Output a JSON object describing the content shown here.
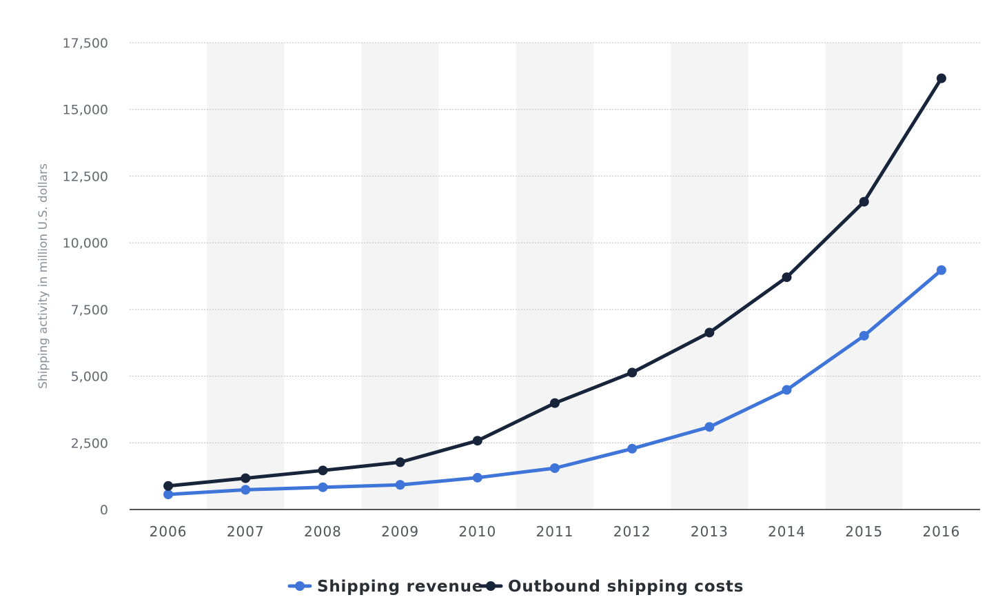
{
  "chart_data": {
    "type": "line",
    "title": "",
    "xlabel": "",
    "ylabel": "Shipping activity in million U.S. dollars",
    "x": [
      "2006",
      "2007",
      "2008",
      "2009",
      "2010",
      "2011",
      "2012",
      "2013",
      "2014",
      "2015",
      "2016"
    ],
    "ylim": [
      0,
      17500
    ],
    "yticks": [
      0,
      2500,
      5000,
      7500,
      10000,
      12500,
      15000,
      17500
    ],
    "ytick_labels": [
      "0",
      "2,500",
      "5,000",
      "7,500",
      "10,000",
      "12,500",
      "15,000",
      "17,500"
    ],
    "grid": true,
    "legend_position": "bottom-center",
    "series": [
      {
        "name": "Shipping revenue",
        "color": "#3f74d8",
        "values": [
          567,
          740,
          835,
          924,
          1193,
          1552,
          2280,
          3097,
          4486,
          6515,
          8976
        ]
      },
      {
        "name": "Outbound shipping costs",
        "color": "#17243a",
        "values": [
          884,
          1174,
          1465,
          1773,
          2579,
          3989,
          5134,
          6635,
          8709,
          11539,
          16167
        ]
      }
    ]
  }
}
